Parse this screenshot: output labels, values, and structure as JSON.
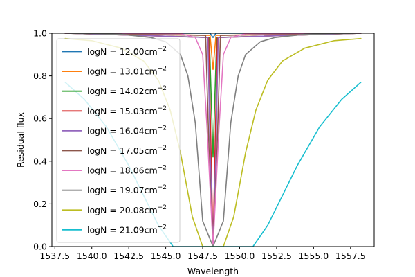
{
  "chart_data": {
    "type": "line",
    "title": "",
    "xlabel": "Wavelength",
    "ylabel": "Residual flux",
    "xlim": [
      1537.3,
      1559.1
    ],
    "ylim": [
      0.0,
      1.0
    ],
    "x_ticks": [
      "1537.5",
      "1540.0",
      "1542.5",
      "1545.0",
      "1547.5",
      "1550.0",
      "1552.5",
      "1555.0",
      "1557.5"
    ],
    "y_ticks": [
      "0.0",
      "0.2",
      "0.4",
      "0.6",
      "0.8",
      "1.0"
    ],
    "grid": false,
    "legend_position": "upper-left",
    "x_range": [
      1538.2,
      1558.2
    ],
    "line_center": 1548.2,
    "series": [
      {
        "label": "logN = 12.00cm",
        "exponent": "−2",
        "color": "#1f77b4",
        "x": [
          1538.2,
          1548.0,
          1548.2,
          1548.4,
          1558.2
        ],
        "y": [
          1.0,
          1.0,
          0.98,
          1.0,
          1.0
        ]
      },
      {
        "label": "logN = 13.01cm",
        "exponent": "−2",
        "color": "#ff7f0e",
        "x": [
          1538.2,
          1548.0,
          1548.2,
          1548.4,
          1558.2
        ],
        "y": [
          1.0,
          0.99,
          0.83,
          0.99,
          1.0
        ]
      },
      {
        "label": "logN = 14.02cm",
        "exponent": "−2",
        "color": "#2ca02c",
        "x": [
          1538.2,
          1547.95,
          1548.2,
          1548.45,
          1558.2
        ],
        "y": [
          1.0,
          0.98,
          0.42,
          0.98,
          1.0
        ]
      },
      {
        "label": "logN = 15.03cm",
        "exponent": "−2",
        "color": "#d62728",
        "x": [
          1538.2,
          1547.9,
          1548.05,
          1548.2,
          1548.35,
          1548.5,
          1558.2
        ],
        "y": [
          1.0,
          0.98,
          0.5,
          0.0,
          0.5,
          0.98,
          1.0
        ]
      },
      {
        "label": "logN = 16.04cm",
        "exponent": "−2",
        "color": "#9467bd",
        "x": [
          1538.2,
          1547.85,
          1548.0,
          1548.2,
          1548.4,
          1548.55,
          1558.2
        ],
        "y": [
          1.0,
          0.98,
          0.45,
          0.0,
          0.45,
          0.98,
          1.0
        ]
      },
      {
        "label": "logN = 17.05cm",
        "exponent": "−2",
        "color": "#8c564b",
        "x": [
          1538.2,
          1547.7,
          1547.95,
          1548.2,
          1548.45,
          1548.7,
          1558.2
        ],
        "y": [
          1.0,
          0.99,
          0.4,
          0.0,
          0.4,
          0.99,
          1.0
        ]
      },
      {
        "label": "logN = 18.06cm",
        "exponent": "−2",
        "color": "#e377c2",
        "x": [
          1538.2,
          1546.0,
          1547.0,
          1547.5,
          1547.8,
          1548.2,
          1548.6,
          1548.9,
          1549.4,
          1550.4,
          1558.2
        ],
        "y": [
          1.0,
          0.998,
          0.98,
          0.9,
          0.55,
          0.0,
          0.55,
          0.9,
          0.98,
          0.998,
          1.0
        ]
      },
      {
        "label": "logN = 19.07cm",
        "exponent": "−2",
        "color": "#7f7f7f",
        "x": [
          1538.2,
          1542.0,
          1544.0,
          1545.0,
          1546.0,
          1546.5,
          1547.0,
          1547.5,
          1548.2,
          1548.9,
          1549.4,
          1549.9,
          1550.4,
          1551.4,
          1552.4,
          1554.4,
          1558.2
        ],
        "y": [
          1.0,
          0.995,
          0.98,
          0.96,
          0.9,
          0.8,
          0.58,
          0.12,
          0.0,
          0.12,
          0.58,
          0.8,
          0.9,
          0.96,
          0.98,
          0.995,
          1.0
        ]
      },
      {
        "label": "logN = 20.08cm",
        "exponent": "−2",
        "color": "#bcbd22",
        "x": [
          1538.2,
          1540.0,
          1542.0,
          1543.5,
          1544.5,
          1545.3,
          1546.0,
          1546.8,
          1547.5,
          1548.2,
          1548.9,
          1549.6,
          1550.4,
          1551.1,
          1551.9,
          1552.9,
          1554.4,
          1556.4,
          1558.2
        ],
        "y": [
          0.975,
          0.965,
          0.93,
          0.87,
          0.78,
          0.64,
          0.44,
          0.14,
          0.0,
          0.0,
          0.0,
          0.14,
          0.44,
          0.64,
          0.78,
          0.87,
          0.93,
          0.965,
          0.975
        ]
      },
      {
        "label": "logN = 21.09cm",
        "exponent": "−2",
        "color": "#17becf",
        "x": [
          1538.2,
          1539.5,
          1541.0,
          1542.5,
          1543.5,
          1544.5,
          1545.5,
          1546.3,
          1547.2,
          1548.2,
          1549.2,
          1550.1,
          1550.9,
          1551.9,
          1552.9,
          1553.9,
          1555.4,
          1556.9,
          1558.2
        ],
        "y": [
          0.77,
          0.69,
          0.56,
          0.38,
          0.24,
          0.1,
          0.0,
          0.0,
          0.0,
          0.0,
          0.0,
          0.0,
          0.0,
          0.1,
          0.24,
          0.38,
          0.56,
          0.69,
          0.77
        ]
      }
    ]
  }
}
